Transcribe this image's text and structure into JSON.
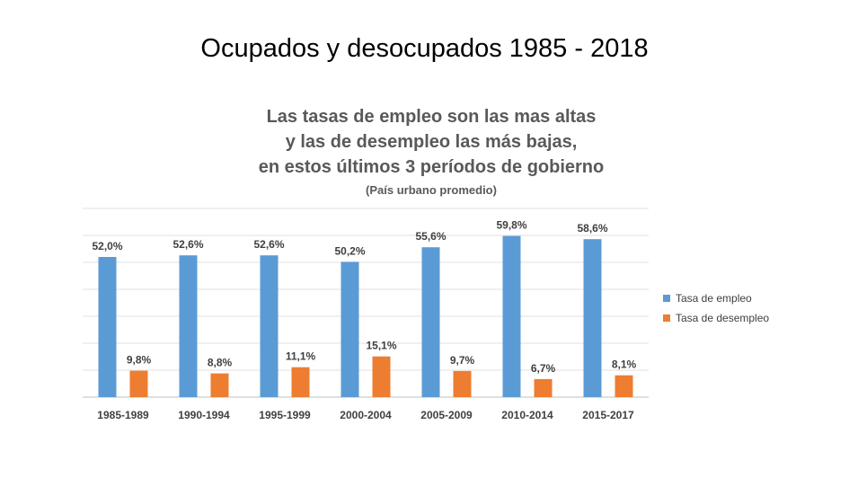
{
  "slide": {
    "title": "Ocupados y desocupados  1985 - 2018"
  },
  "chart_data": {
    "type": "bar",
    "title_lines": [
      "Las tasas de empleo son las mas altas",
      "y las de desempleo las más bajas,",
      "en estos últimos 3 períodos de gobierno"
    ],
    "subtitle": "(País urbano promedio)",
    "categories": [
      "1985-1989",
      "1990-1994",
      "1995-1999",
      "2000-2004",
      "2005-2009",
      "2010-2014",
      "2015-2017"
    ],
    "series": [
      {
        "name": "Tasa de empleo",
        "color": "#5B9BD5",
        "values": [
          52.0,
          52.6,
          52.6,
          50.2,
          55.6,
          59.8,
          58.6
        ],
        "labels": [
          "52,0%",
          "52,6%",
          "52,6%",
          "50,2%",
          "55,6%",
          "59,8%",
          "58,6%"
        ]
      },
      {
        "name": "Tasa de desempleo",
        "color": "#ED7D31",
        "values": [
          9.8,
          8.8,
          11.1,
          15.1,
          9.7,
          6.7,
          8.1
        ],
        "labels": [
          "9,8%",
          "8,8%",
          "11,1%",
          "15,1%",
          "9,7%",
          "6,7%",
          "8,1%"
        ]
      }
    ],
    "ylim": [
      0,
      70
    ],
    "grid": true,
    "legend_position": "right"
  }
}
